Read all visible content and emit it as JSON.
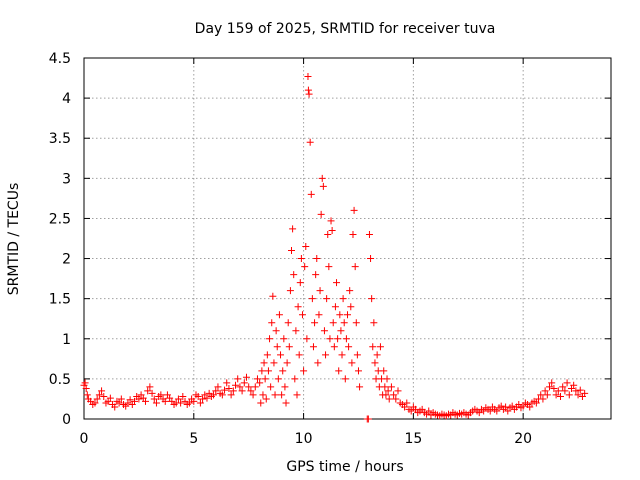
{
  "chart_data": {
    "type": "scatter",
    "title": "Day 159 of 2025, SRMTID for receiver tuva",
    "xlabel": "GPS time / hours",
    "ylabel": "SRMTID / TECUs",
    "xlim": [
      0,
      24
    ],
    "ylim": [
      0,
      4.5
    ],
    "x_ticks": [
      0,
      5,
      10,
      15,
      20
    ],
    "x_tick_labels": [
      "0",
      "5",
      "10",
      "15",
      "20"
    ],
    "y_ticks": [
      0,
      0.5,
      1,
      1.5,
      2,
      2.5,
      3,
      3.5,
      4,
      4.5
    ],
    "y_tick_labels": [
      "0",
      "0.5",
      "1",
      "1.5",
      "2",
      "2.5",
      "3",
      "3.5",
      "4",
      "4.5"
    ],
    "grid": true,
    "marker": "plus",
    "series_color": "#ff0000",
    "series": [
      {
        "name": "SRMTID",
        "points": [
          [
            0.0,
            0.42
          ],
          [
            0.05,
            0.45
          ],
          [
            0.1,
            0.38
          ],
          [
            0.15,
            0.3
          ],
          [
            0.2,
            0.25
          ],
          [
            0.3,
            0.22
          ],
          [
            0.4,
            0.18
          ],
          [
            0.5,
            0.2
          ],
          [
            0.6,
            0.25
          ],
          [
            0.7,
            0.3
          ],
          [
            0.8,
            0.35
          ],
          [
            0.9,
            0.28
          ],
          [
            1.0,
            0.2
          ],
          [
            1.1,
            0.22
          ],
          [
            1.2,
            0.26
          ],
          [
            1.3,
            0.18
          ],
          [
            1.4,
            0.15
          ],
          [
            1.5,
            0.22
          ],
          [
            1.6,
            0.2
          ],
          [
            1.7,
            0.25
          ],
          [
            1.8,
            0.18
          ],
          [
            1.9,
            0.16
          ],
          [
            2.0,
            0.2
          ],
          [
            2.1,
            0.24
          ],
          [
            2.2,
            0.18
          ],
          [
            2.3,
            0.22
          ],
          [
            2.4,
            0.28
          ],
          [
            2.5,
            0.25
          ],
          [
            2.6,
            0.3
          ],
          [
            2.7,
            0.26
          ],
          [
            2.8,
            0.22
          ],
          [
            2.9,
            0.35
          ],
          [
            3.0,
            0.4
          ],
          [
            3.1,
            0.32
          ],
          [
            3.2,
            0.25
          ],
          [
            3.3,
            0.2
          ],
          [
            3.4,
            0.28
          ],
          [
            3.5,
            0.3
          ],
          [
            3.6,
            0.25
          ],
          [
            3.7,
            0.22
          ],
          [
            3.8,
            0.3
          ],
          [
            3.9,
            0.26
          ],
          [
            4.0,
            0.22
          ],
          [
            4.1,
            0.18
          ],
          [
            4.2,
            0.2
          ],
          [
            4.3,
            0.25
          ],
          [
            4.4,
            0.2
          ],
          [
            4.5,
            0.28
          ],
          [
            4.6,
            0.22
          ],
          [
            4.7,
            0.18
          ],
          [
            4.8,
            0.2
          ],
          [
            4.9,
            0.25
          ],
          [
            5.0,
            0.22
          ],
          [
            5.1,
            0.3
          ],
          [
            5.2,
            0.28
          ],
          [
            5.3,
            0.2
          ],
          [
            5.4,
            0.25
          ],
          [
            5.5,
            0.3
          ],
          [
            5.6,
            0.26
          ],
          [
            5.7,
            0.32
          ],
          [
            5.8,
            0.28
          ],
          [
            5.9,
            0.3
          ],
          [
            6.0,
            0.35
          ],
          [
            6.1,
            0.4
          ],
          [
            6.2,
            0.32
          ],
          [
            6.3,
            0.3
          ],
          [
            6.4,
            0.36
          ],
          [
            6.5,
            0.45
          ],
          [
            6.6,
            0.38
          ],
          [
            6.7,
            0.3
          ],
          [
            6.8,
            0.35
          ],
          [
            6.9,
            0.42
          ],
          [
            7.0,
            0.5
          ],
          [
            7.1,
            0.4
          ],
          [
            7.2,
            0.35
          ],
          [
            7.3,
            0.45
          ],
          [
            7.4,
            0.52
          ],
          [
            7.5,
            0.4
          ],
          [
            7.6,
            0.35
          ],
          [
            7.7,
            0.3
          ],
          [
            7.8,
            0.4
          ],
          [
            7.9,
            0.5
          ],
          [
            8.0,
            0.45
          ],
          [
            8.05,
            0.2
          ],
          [
            8.1,
            0.6
          ],
          [
            8.15,
            0.3
          ],
          [
            8.2,
            0.7
          ],
          [
            8.25,
            0.5
          ],
          [
            8.3,
            0.25
          ],
          [
            8.35,
            0.8
          ],
          [
            8.4,
            0.6
          ],
          [
            8.45,
            1.0
          ],
          [
            8.5,
            0.4
          ],
          [
            8.55,
            1.2
          ],
          [
            8.6,
            1.53
          ],
          [
            8.65,
            0.7
          ],
          [
            8.7,
            0.3
          ],
          [
            8.75,
            1.1
          ],
          [
            8.8,
            0.9
          ],
          [
            8.85,
            0.5
          ],
          [
            8.9,
            1.3
          ],
          [
            8.95,
            0.8
          ],
          [
            9.0,
            0.3
          ],
          [
            9.05,
            0.6
          ],
          [
            9.1,
            1.0
          ],
          [
            9.15,
            0.4
          ],
          [
            9.2,
            0.2
          ],
          [
            9.25,
            0.7
          ],
          [
            9.3,
            1.2
          ],
          [
            9.35,
            0.9
          ],
          [
            9.4,
            1.6
          ],
          [
            9.45,
            2.1
          ],
          [
            9.5,
            2.37
          ],
          [
            9.55,
            1.8
          ],
          [
            9.6,
            0.5
          ],
          [
            9.65,
            1.1
          ],
          [
            9.7,
            0.3
          ],
          [
            9.75,
            1.4
          ],
          [
            9.8,
            0.8
          ],
          [
            9.85,
            1.7
          ],
          [
            9.9,
            2.0
          ],
          [
            9.95,
            1.3
          ],
          [
            10.0,
            0.6
          ],
          [
            10.05,
            1.9
          ],
          [
            10.1,
            2.15
          ],
          [
            10.15,
            1.0
          ],
          [
            10.2,
            4.27
          ],
          [
            10.22,
            4.1
          ],
          [
            10.25,
            4.05
          ],
          [
            10.3,
            3.45
          ],
          [
            10.35,
            2.8
          ],
          [
            10.4,
            1.5
          ],
          [
            10.45,
            0.9
          ],
          [
            10.5,
            1.2
          ],
          [
            10.55,
            1.8
          ],
          [
            10.6,
            2.0
          ],
          [
            10.65,
            0.7
          ],
          [
            10.7,
            1.3
          ],
          [
            10.75,
            1.6
          ],
          [
            10.8,
            2.55
          ],
          [
            10.85,
            3.0
          ],
          [
            10.9,
            2.9
          ],
          [
            10.95,
            1.1
          ],
          [
            11.0,
            0.8
          ],
          [
            11.05,
            1.5
          ],
          [
            11.1,
            2.3
          ],
          [
            11.15,
            1.9
          ],
          [
            11.2,
            1.0
          ],
          [
            11.25,
            2.47
          ],
          [
            11.3,
            2.35
          ],
          [
            11.35,
            1.2
          ],
          [
            11.4,
            0.9
          ],
          [
            11.45,
            1.4
          ],
          [
            11.5,
            1.7
          ],
          [
            11.55,
            1.0
          ],
          [
            11.6,
            0.6
          ],
          [
            11.65,
            1.3
          ],
          [
            11.7,
            1.1
          ],
          [
            11.75,
            0.8
          ],
          [
            11.8,
            1.5
          ],
          [
            11.85,
            1.2
          ],
          [
            11.9,
            0.5
          ],
          [
            11.95,
            1.0
          ],
          [
            12.0,
            1.3
          ],
          [
            12.05,
            0.9
          ],
          [
            12.1,
            1.6
          ],
          [
            12.15,
            1.4
          ],
          [
            12.2,
            0.7
          ],
          [
            12.25,
            2.3
          ],
          [
            12.3,
            2.6
          ],
          [
            12.35,
            1.9
          ],
          [
            12.4,
            1.2
          ],
          [
            12.45,
            0.8
          ],
          [
            12.5,
            0.6
          ],
          [
            12.55,
            0.4
          ],
          [
            12.9,
            0.0
          ],
          [
            12.95,
            0.0
          ],
          [
            13.0,
            2.3
          ],
          [
            13.05,
            2.0
          ],
          [
            13.1,
            1.5
          ],
          [
            13.15,
            0.9
          ],
          [
            13.2,
            1.2
          ],
          [
            13.25,
            0.7
          ],
          [
            13.3,
            0.5
          ],
          [
            13.35,
            0.8
          ],
          [
            13.4,
            0.6
          ],
          [
            13.45,
            0.4
          ],
          [
            13.5,
            0.9
          ],
          [
            13.55,
            0.5
          ],
          [
            13.6,
            0.3
          ],
          [
            13.65,
            0.6
          ],
          [
            13.7,
            0.4
          ],
          [
            13.75,
            0.3
          ],
          [
            13.8,
            0.5
          ],
          [
            13.85,
            0.35
          ],
          [
            13.9,
            0.25
          ],
          [
            14.0,
            0.4
          ],
          [
            14.1,
            0.3
          ],
          [
            14.2,
            0.25
          ],
          [
            14.3,
            0.35
          ],
          [
            14.4,
            0.2
          ],
          [
            14.5,
            0.18
          ],
          [
            14.6,
            0.15
          ],
          [
            14.7,
            0.2
          ],
          [
            14.8,
            0.12
          ],
          [
            14.9,
            0.1
          ],
          [
            15.0,
            0.15
          ],
          [
            15.1,
            0.12
          ],
          [
            15.2,
            0.08
          ],
          [
            15.3,
            0.1
          ],
          [
            15.4,
            0.12
          ],
          [
            15.5,
            0.08
          ],
          [
            15.6,
            0.06
          ],
          [
            15.7,
            0.1
          ],
          [
            15.8,
            0.05
          ],
          [
            15.9,
            0.08
          ],
          [
            16.0,
            0.06
          ],
          [
            16.1,
            0.05
          ],
          [
            16.2,
            0.04
          ],
          [
            16.3,
            0.06
          ],
          [
            16.4,
            0.05
          ],
          [
            16.5,
            0.04
          ],
          [
            16.6,
            0.06
          ],
          [
            16.7,
            0.05
          ],
          [
            16.8,
            0.08
          ],
          [
            16.9,
            0.06
          ],
          [
            17.0,
            0.05
          ],
          [
            17.1,
            0.07
          ],
          [
            17.2,
            0.06
          ],
          [
            17.3,
            0.08
          ],
          [
            17.4,
            0.06
          ],
          [
            17.5,
            0.05
          ],
          [
            17.6,
            0.08
          ],
          [
            17.7,
            0.1
          ],
          [
            17.8,
            0.12
          ],
          [
            17.9,
            0.1
          ],
          [
            18.0,
            0.08
          ],
          [
            18.1,
            0.12
          ],
          [
            18.2,
            0.1
          ],
          [
            18.3,
            0.14
          ],
          [
            18.4,
            0.12
          ],
          [
            18.5,
            0.1
          ],
          [
            18.6,
            0.15
          ],
          [
            18.7,
            0.12
          ],
          [
            18.8,
            0.1
          ],
          [
            18.9,
            0.14
          ],
          [
            19.0,
            0.16
          ],
          [
            19.1,
            0.12
          ],
          [
            19.2,
            0.15
          ],
          [
            19.3,
            0.1
          ],
          [
            19.4,
            0.14
          ],
          [
            19.5,
            0.16
          ],
          [
            19.6,
            0.12
          ],
          [
            19.7,
            0.15
          ],
          [
            19.8,
            0.18
          ],
          [
            19.9,
            0.14
          ],
          [
            20.0,
            0.16
          ],
          [
            20.1,
            0.2
          ],
          [
            20.2,
            0.18
          ],
          [
            20.3,
            0.15
          ],
          [
            20.4,
            0.2
          ],
          [
            20.5,
            0.22
          ],
          [
            20.6,
            0.2
          ],
          [
            20.7,
            0.25
          ],
          [
            20.8,
            0.3
          ],
          [
            20.9,
            0.25
          ],
          [
            21.0,
            0.35
          ],
          [
            21.1,
            0.3
          ],
          [
            21.2,
            0.4
          ],
          [
            21.3,
            0.45
          ],
          [
            21.4,
            0.38
          ],
          [
            21.5,
            0.3
          ],
          [
            21.6,
            0.35
          ],
          [
            21.7,
            0.28
          ],
          [
            21.8,
            0.4
          ],
          [
            21.9,
            0.35
          ],
          [
            22.0,
            0.45
          ],
          [
            22.1,
            0.3
          ],
          [
            22.2,
            0.38
          ],
          [
            22.3,
            0.42
          ],
          [
            22.4,
            0.35
          ],
          [
            22.5,
            0.3
          ],
          [
            22.6,
            0.36
          ],
          [
            22.7,
            0.28
          ],
          [
            22.8,
            0.32
          ]
        ]
      }
    ]
  }
}
